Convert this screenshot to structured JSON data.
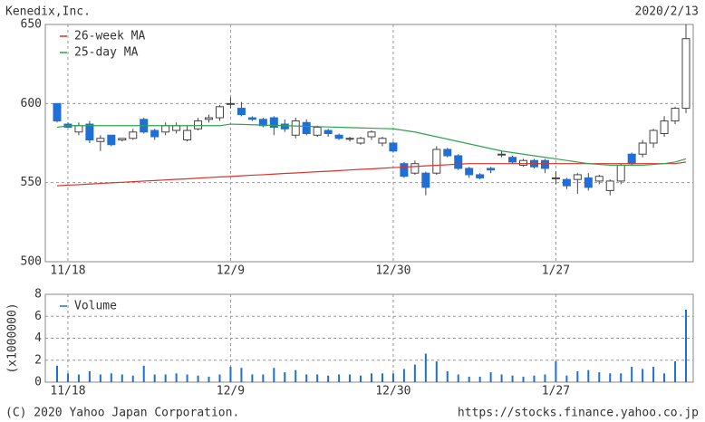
{
  "chart_data": [
    {
      "type": "candlestick",
      "title": "Kenedix,Inc.",
      "date": "2020/2/13",
      "categories": [
        null,
        "11/18",
        null,
        null,
        null,
        null,
        null,
        null,
        null,
        null,
        null,
        null,
        null,
        null,
        null,
        null,
        "12/9",
        null,
        null,
        null,
        null,
        null,
        null,
        null,
        null,
        null,
        null,
        null,
        null,
        null,
        null,
        "12/30",
        null,
        null,
        null,
        null,
        null,
        null,
        null,
        null,
        null,
        null,
        null,
        null,
        null,
        null,
        "1/27",
        null,
        null,
        null,
        null,
        null,
        null,
        null,
        null,
        null,
        null,
        null,
        null
      ],
      "open": [
        600,
        587,
        582,
        587,
        576,
        580,
        577,
        578,
        590,
        583,
        582,
        583,
        577,
        584,
        590,
        591,
        600,
        597,
        591,
        590,
        591,
        587,
        580,
        588,
        580,
        583,
        580,
        578,
        575,
        579,
        575,
        575,
        562,
        556,
        556,
        556,
        571,
        567,
        559,
        555,
        559,
        568,
        566,
        561,
        564,
        564,
        553,
        552,
        552,
        553,
        551,
        545,
        551,
        568,
        568,
        575,
        581,
        589,
        597
      ],
      "high": [
        600,
        588,
        588,
        589,
        580,
        580,
        578,
        584,
        591,
        584,
        588,
        588,
        586,
        591,
        593,
        599,
        604,
        601,
        592,
        591,
        592,
        590,
        591,
        590,
        586,
        584,
        581,
        579,
        579,
        583,
        579,
        576,
        563,
        564,
        557,
        573,
        572,
        568,
        560,
        556,
        560,
        570,
        567,
        565,
        565,
        565,
        557,
        553,
        556,
        556,
        555,
        552,
        562,
        569,
        577,
        584,
        592,
        598,
        650
      ],
      "low": [
        588,
        585,
        580,
        575,
        570,
        573,
        576,
        577,
        581,
        577,
        580,
        581,
        576,
        583,
        588,
        589,
        597,
        592,
        589,
        585,
        580,
        582,
        578,
        580,
        579,
        579,
        577,
        576,
        574,
        577,
        573,
        569,
        553,
        555,
        542,
        555,
        566,
        558,
        553,
        552,
        556,
        566,
        562,
        560,
        559,
        556,
        549,
        546,
        543,
        545,
        549,
        542,
        549,
        561,
        566,
        572,
        579,
        587,
        594
      ],
      "close": [
        589,
        585,
        586,
        577,
        578,
        574,
        578,
        582,
        582,
        579,
        586,
        586,
        583,
        589,
        591,
        598,
        600,
        593,
        590,
        586,
        585,
        584,
        589,
        581,
        585,
        581,
        578,
        578,
        578,
        582,
        578,
        570,
        554,
        562,
        547,
        571,
        567,
        559,
        555,
        553,
        558,
        568,
        563,
        564,
        560,
        559,
        553,
        548,
        555,
        547,
        554,
        551,
        561,
        562,
        575,
        583,
        589,
        597,
        641
      ],
      "up_color": "#ffffff",
      "down_color": "#1f6fd6",
      "series": [
        {
          "name": "26-week MA",
          "color": "#d9342b",
          "values": [
            548,
            548.4,
            548.7,
            549.1,
            549.5,
            549.9,
            550.2,
            550.6,
            551,
            551.3,
            551.7,
            552.1,
            552.4,
            552.8,
            553.2,
            553.6,
            553.9,
            554.3,
            554.7,
            555,
            555.4,
            555.8,
            556.1,
            556.5,
            556.9,
            557.2,
            557.6,
            558,
            558.4,
            558.7,
            559.1,
            559.5,
            559.8,
            560.2,
            560.6,
            560.9,
            561.3,
            561.7,
            562,
            562,
            562,
            562,
            562,
            562,
            562,
            562,
            562,
            562,
            562,
            562,
            562,
            562,
            562,
            562,
            562,
            562,
            562,
            562,
            563
          ]
        },
        {
          "name": "25-day MA",
          "color": "#2fa44f",
          "values": [
            585,
            586,
            586,
            586,
            586,
            586,
            586,
            586,
            586,
            586,
            586,
            586,
            586,
            586,
            586,
            586,
            587,
            586.8,
            586.6,
            586.4,
            586.2,
            586,
            585.8,
            585.6,
            585.4,
            585.2,
            585,
            584.8,
            584.6,
            584.4,
            584.2,
            584,
            583,
            582,
            580.5,
            579,
            577.5,
            576,
            574.5,
            573,
            571.5,
            570,
            569,
            568,
            567,
            566,
            565,
            564,
            563,
            562,
            561.5,
            561,
            561,
            561,
            561,
            561.5,
            562,
            563,
            565
          ]
        }
      ],
      "ylim": [
        500,
        650
      ],
      "yticks": [
        500,
        550,
        600,
        650
      ],
      "grid": true,
      "legend": "upper left"
    },
    {
      "type": "bar",
      "y_label": "(x1000000)",
      "categories": [
        null,
        "11/18",
        null,
        null,
        null,
        null,
        null,
        null,
        null,
        null,
        null,
        null,
        null,
        null,
        null,
        null,
        "12/9",
        null,
        null,
        null,
        null,
        null,
        null,
        null,
        null,
        null,
        null,
        null,
        null,
        null,
        null,
        "12/30",
        null,
        null,
        null,
        null,
        null,
        null,
        null,
        null,
        null,
        null,
        null,
        null,
        null,
        null,
        "1/27",
        null,
        null,
        null,
        null,
        null,
        null,
        null,
        null,
        null,
        null,
        null,
        null
      ],
      "series": [
        {
          "name": "Volume",
          "color": "#1f6fd6",
          "values": [
            1.5,
            0.8,
            0.7,
            1.0,
            0.7,
            0.8,
            0.7,
            0.6,
            1.5,
            0.7,
            0.7,
            0.8,
            0.7,
            0.6,
            0.5,
            0.7,
            1.4,
            1.3,
            0.7,
            0.7,
            1.3,
            0.9,
            1.1,
            0.7,
            0.7,
            0.6,
            0.7,
            0.7,
            0.6,
            0.8,
            0.8,
            0.8,
            1.2,
            1.6,
            2.6,
            1.9,
            1.0,
            0.7,
            0.5,
            0.5,
            0.9,
            0.7,
            0.6,
            0.5,
            0.6,
            0.7,
            1.9,
            0.6,
            1.0,
            1.1,
            0.9,
            0.8,
            0.8,
            1.4,
            1.2,
            1.4,
            0.8,
            1.9,
            6.6
          ]
        }
      ],
      "ylim": [
        0,
        8
      ],
      "yticks": [
        0,
        2,
        4,
        6,
        8
      ],
      "grid": true,
      "legend": "upper left"
    }
  ],
  "footer": {
    "copyright": "(C) 2020 Yahoo Japan Corporation.",
    "url": "https://stocks.finance.yahoo.co.jp"
  }
}
